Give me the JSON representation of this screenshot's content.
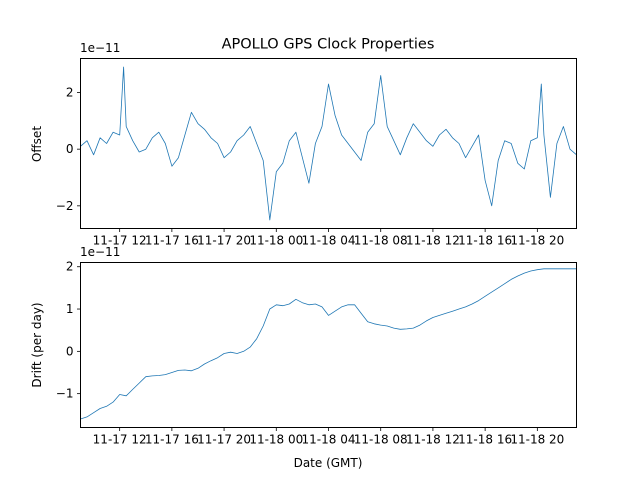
{
  "chart_data": [
    {
      "type": "line",
      "title": "APOLLO GPS Clock Properties",
      "xlabel": "",
      "ylabel": "Offset",
      "y_offset_label": "1e−11",
      "x_ticks": [
        "11-17 12",
        "11-17 16",
        "11-17 20",
        "11-18 00",
        "11-18 04",
        "11-18 08",
        "11-18 12",
        "11-18 16",
        "11-18 20"
      ],
      "xlim": [
        "11-17 09:00",
        "11-18 23:00"
      ],
      "yticks": [
        "−2",
        "0",
        "2"
      ],
      "ylim": [
        -2.8,
        3.2
      ],
      "grid": false,
      "series": [
        {
          "x_hours": [
            9,
            9.5,
            10,
            10.5,
            11,
            11.5,
            12,
            12.3,
            12.5,
            13,
            13.5,
            14,
            14.5,
            15,
            15.5,
            16,
            16.5,
            17,
            17.5,
            18,
            18.5,
            19,
            19.5,
            20,
            20.5,
            21,
            21.5,
            22,
            22.5,
            23,
            23.5,
            24,
            24.5,
            25,
            25.5,
            26,
            26.5,
            27,
            27.5,
            28,
            28.5,
            29,
            29.5,
            30,
            30.5,
            31,
            31.5,
            32,
            32.5,
            33,
            33.5,
            34,
            34.5,
            35,
            35.5,
            36,
            36.5,
            37,
            37.5,
            38,
            38.5,
            39,
            39.5,
            40,
            40.5,
            41,
            41.5,
            42,
            42.5,
            43,
            43.5,
            44,
            44.3,
            44.5,
            45,
            45.5,
            46,
            46.5,
            47
          ],
          "values": [
            0.1,
            0.3,
            -0.2,
            0.4,
            0.2,
            0.6,
            0.5,
            2.9,
            0.8,
            0.3,
            -0.1,
            0.0,
            0.4,
            0.6,
            0.2,
            -0.6,
            -0.3,
            0.5,
            1.3,
            0.9,
            0.7,
            0.4,
            0.2,
            -0.3,
            -0.1,
            0.3,
            0.5,
            0.8,
            0.2,
            -0.4,
            -2.5,
            -0.8,
            -0.5,
            0.3,
            0.6,
            -0.3,
            -1.2,
            0.2,
            0.8,
            2.3,
            1.2,
            0.5,
            0.2,
            -0.1,
            -0.4,
            0.6,
            0.9,
            2.6,
            0.8,
            0.3,
            -0.2,
            0.4,
            0.9,
            0.6,
            0.3,
            0.1,
            0.5,
            0.7,
            0.4,
            0.2,
            -0.3,
            0.1,
            0.5,
            -1.1,
            -2.0,
            -0.4,
            0.3,
            0.2,
            -0.5,
            -0.7,
            0.3,
            0.4,
            2.3,
            0.5,
            -1.7,
            0.2,
            0.8,
            0.0,
            -0.2
          ]
        }
      ]
    },
    {
      "type": "line",
      "title": "",
      "xlabel": "Date (GMT)",
      "ylabel": "Drift (per day)",
      "y_offset_label": "1e−11",
      "x_ticks": [
        "11-17 12",
        "11-17 16",
        "11-17 20",
        "11-18 00",
        "11-18 04",
        "11-18 08",
        "11-18 12",
        "11-18 16",
        "11-18 20"
      ],
      "xlim": [
        "11-17 09:00",
        "11-18 23:00"
      ],
      "yticks": [
        "−1",
        "0",
        "1",
        "2"
      ],
      "ylim": [
        -1.8,
        2.1
      ],
      "grid": false,
      "series": [
        {
          "x_hours": [
            9,
            9.5,
            10,
            10.5,
            11,
            11.5,
            12,
            12.5,
            13,
            13.5,
            14,
            14.5,
            15,
            15.5,
            16,
            16.5,
            17,
            17.5,
            18,
            18.5,
            19,
            19.5,
            20,
            20.5,
            21,
            21.5,
            22,
            22.5,
            23,
            23.5,
            24,
            24.5,
            25,
            25.5,
            26,
            26.5,
            27,
            27.5,
            28,
            28.5,
            29,
            29.5,
            30,
            30.5,
            31,
            31.5,
            32,
            32.5,
            33,
            33.5,
            34,
            34.5,
            35,
            35.5,
            36,
            36.5,
            37,
            37.5,
            38,
            38.5,
            39,
            39.5,
            40,
            40.5,
            41,
            41.5,
            42,
            42.5,
            43,
            43.5,
            44,
            44.5,
            45,
            45.5,
            46,
            46.5,
            47
          ],
          "values": [
            -1.6,
            -1.55,
            -1.45,
            -1.35,
            -1.3,
            -1.2,
            -1.02,
            -1.05,
            -0.9,
            -0.75,
            -0.6,
            -0.58,
            -0.57,
            -0.55,
            -0.5,
            -0.45,
            -0.44,
            -0.46,
            -0.4,
            -0.3,
            -0.22,
            -0.15,
            -0.05,
            -0.02,
            -0.05,
            0.0,
            0.1,
            0.3,
            0.6,
            1.0,
            1.1,
            1.08,
            1.12,
            1.23,
            1.15,
            1.1,
            1.12,
            1.05,
            0.85,
            0.95,
            1.05,
            1.1,
            1.1,
            0.9,
            0.7,
            0.65,
            0.62,
            0.6,
            0.55,
            0.52,
            0.53,
            0.55,
            0.62,
            0.72,
            0.8,
            0.85,
            0.9,
            0.95,
            1.0,
            1.05,
            1.12,
            1.2,
            1.3,
            1.4,
            1.5,
            1.6,
            1.7,
            1.78,
            1.85,
            1.9,
            1.93,
            1.95,
            1.95,
            1.95,
            1.95,
            1.95,
            1.95
          ]
        }
      ]
    }
  ]
}
